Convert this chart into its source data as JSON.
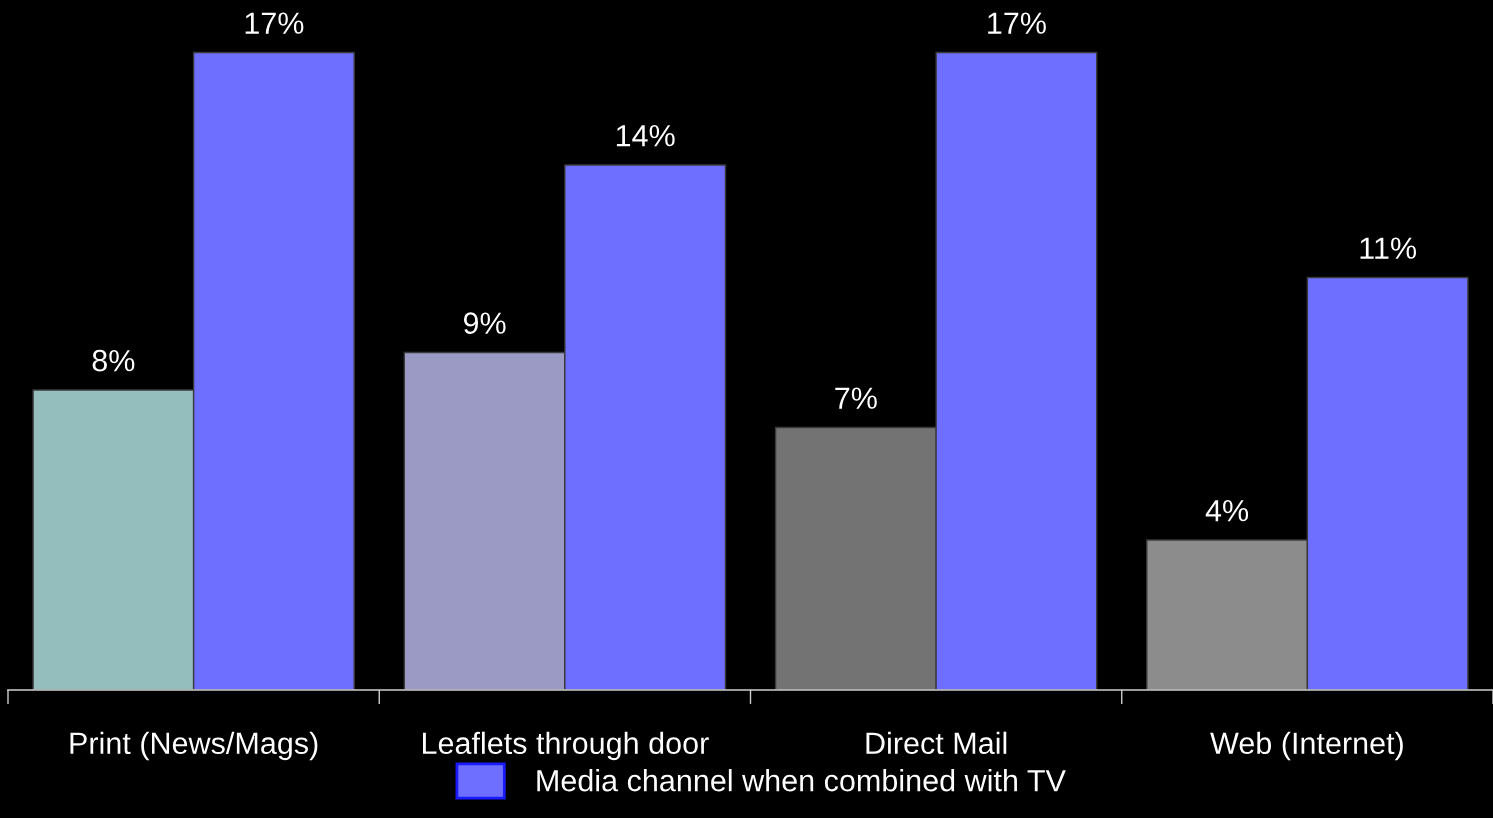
{
  "chart_data": {
    "type": "bar",
    "categories": [
      "Print (News/Mags)",
      "Leaflets through door",
      "Direct Mail",
      "Web (Internet)"
    ],
    "series": [
      {
        "colors": [
          "#94bdbd",
          "#9a9ac4",
          "#737373",
          "#8c8c8c"
        ],
        "values": [
          8,
          9,
          7,
          4
        ],
        "value_labels": [
          "8%",
          "9%",
          "7%",
          "4%"
        ]
      },
      {
        "name": "Media channel when combined with TV",
        "color": "#6f6fff",
        "values": [
          17,
          14,
          17,
          11
        ],
        "value_labels": [
          "17%",
          "14%",
          "17%",
          "11%"
        ]
      }
    ],
    "ylim": [
      0,
      18.4
    ],
    "legend": "bottom",
    "tick_labels": "x"
  }
}
